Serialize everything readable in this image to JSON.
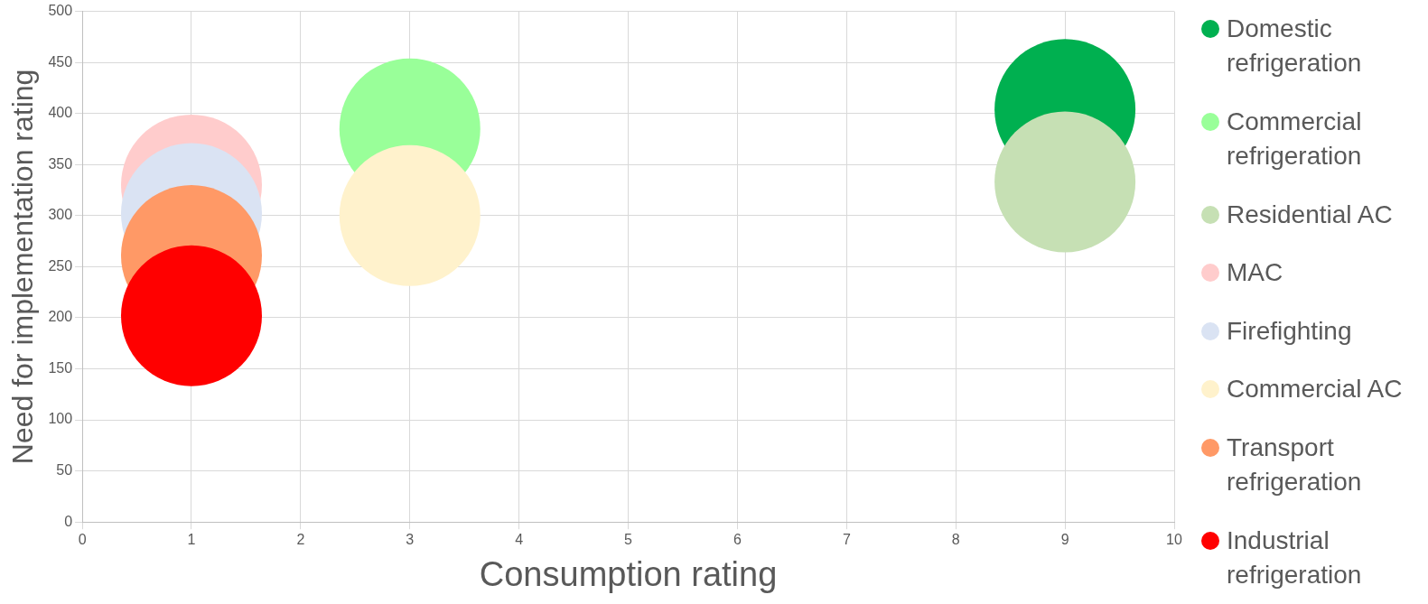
{
  "chart_data": {
    "type": "bubble",
    "xlabel": "Consumption rating",
    "ylabel": "Need for implementation rating",
    "xlim": [
      0,
      10
    ],
    "xticks": [
      0,
      1,
      2,
      3,
      4,
      5,
      6,
      7,
      8,
      9,
      10
    ],
    "ylim": [
      0,
      500
    ],
    "yticks": [
      0,
      50,
      100,
      150,
      200,
      250,
      300,
      350,
      400,
      450,
      500
    ],
    "grid": true,
    "legend": "right",
    "marker": "circle",
    "series": [
      {
        "name": "Domestic refrigeration",
        "color": "#00b050",
        "x": [
          9
        ],
        "values": [
          404
        ],
        "sizes": [
          1
        ]
      },
      {
        "name": "Commercial refrigeration",
        "color": "#99ff99",
        "x": [
          3
        ],
        "values": [
          385
        ],
        "sizes": [
          1
        ]
      },
      {
        "name": "Residential AC",
        "color": "#c6e0b4",
        "x": [
          9
        ],
        "values": [
          333
        ],
        "sizes": [
          1
        ]
      },
      {
        "name": "MAC",
        "color": "#ffcccc",
        "x": [
          1
        ],
        "values": [
          330
        ],
        "sizes": [
          1
        ]
      },
      {
        "name": "Firefighting",
        "color": "#dae3f3",
        "x": [
          1
        ],
        "values": [
          302
        ],
        "sizes": [
          1
        ]
      },
      {
        "name": "Commercial AC",
        "color": "#fff2cc",
        "x": [
          3
        ],
        "values": [
          300
        ],
        "sizes": [
          1
        ]
      },
      {
        "name": "Transport refrigeration",
        "color": "#ff9966",
        "x": [
          1
        ],
        "values": [
          261
        ],
        "sizes": [
          1
        ]
      },
      {
        "name": "Industrial refrigeration",
        "color": "#ff0000",
        "x": [
          1
        ],
        "values": [
          202
        ],
        "sizes": [
          1
        ]
      }
    ]
  }
}
